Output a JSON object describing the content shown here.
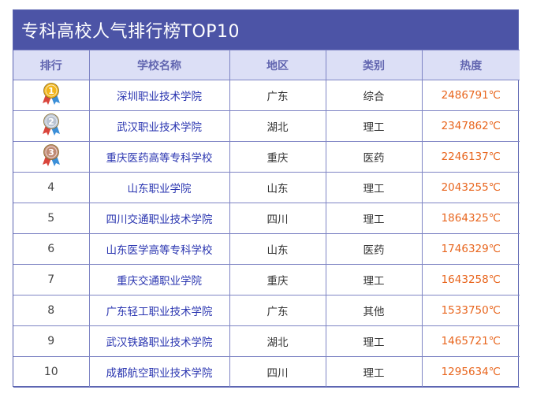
{
  "title": "专科高校人气排行榜TOP10",
  "headers": {
    "rank": "排行",
    "school": "学校名称",
    "region": "地区",
    "category": "类别",
    "heat": "热度"
  },
  "medal_colors": {
    "gold": "#f1b51c",
    "silver": "#b9c3d2",
    "bronze": "#c08a74"
  },
  "rows": [
    {
      "rank": "1",
      "medal": "gold",
      "school": "深圳职业技术学院",
      "region": "广东",
      "category": "综合",
      "heat": "2486791℃"
    },
    {
      "rank": "2",
      "medal": "silver",
      "school": "武汉职业技术学院",
      "region": "湖北",
      "category": "理工",
      "heat": "2347862℃"
    },
    {
      "rank": "3",
      "medal": "bronze",
      "school": "重庆医药高等专科学校",
      "region": "重庆",
      "category": "医药",
      "heat": "2246137℃"
    },
    {
      "rank": "4",
      "school": "山东职业学院",
      "region": "山东",
      "category": "理工",
      "heat": "2043255℃"
    },
    {
      "rank": "5",
      "school": "四川交通职业技术学院",
      "region": "四川",
      "category": "理工",
      "heat": "1864325℃"
    },
    {
      "rank": "6",
      "school": "山东医学高等专科学校",
      "region": "山东",
      "category": "医药",
      "heat": "1746329℃"
    },
    {
      "rank": "7",
      "school": "重庆交通职业学院",
      "region": "重庆",
      "category": "理工",
      "heat": "1643258℃"
    },
    {
      "rank": "8",
      "school": "广东轻工职业技术学院",
      "region": "广东",
      "category": "其他",
      "heat": "1533750℃"
    },
    {
      "rank": "9",
      "school": "武汉铁路职业技术学院",
      "region": "湖北",
      "category": "理工",
      "heat": "1465721℃"
    },
    {
      "rank": "10",
      "school": "成都航空职业技术学院",
      "region": "四川",
      "category": "理工",
      "heat": "1295634℃"
    }
  ]
}
